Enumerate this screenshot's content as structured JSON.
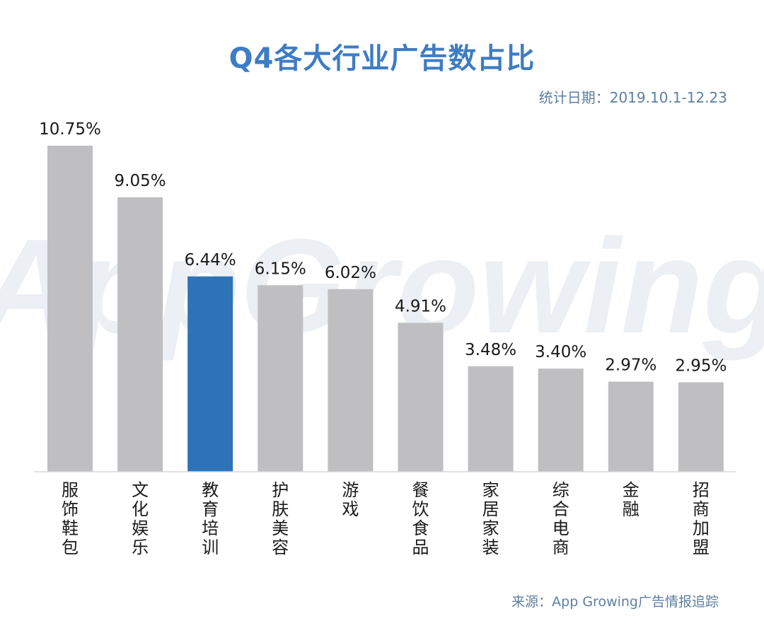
{
  "header": {
    "title": "Q4各大行业广告数占比",
    "date_label": "统计日期：2019.10.1-12.23"
  },
  "footer": {
    "source": "来源：App Growing广告情报追踪"
  },
  "watermark": {
    "text": "AppGrowing"
  },
  "colors": {
    "bar_default": "#bfbfc1",
    "bar_highlight": "#2e73b8",
    "title": "#3e7cc4",
    "axis": "#d9d9d9"
  },
  "chart_data": {
    "type": "bar",
    "title": "Q4各大行业广告数占比",
    "categories": [
      "服饰鞋包",
      "文化娱乐",
      "教育培训",
      "护肤美容",
      "游戏",
      "餐饮食品",
      "家居家装",
      "综合电商",
      "金融",
      "招商加盟"
    ],
    "values": [
      10.75,
      9.05,
      6.44,
      6.15,
      6.02,
      4.91,
      3.48,
      3.4,
      2.97,
      2.95
    ],
    "value_labels": [
      "10.75%",
      "9.05%",
      "6.44%",
      "6.15%",
      "6.02%",
      "4.91%",
      "3.48%",
      "3.40%",
      "2.97%",
      "2.95%"
    ],
    "highlight_index": 2,
    "unit": "%",
    "ylim": [
      0,
      10.75
    ],
    "grid": false,
    "legend": "none"
  }
}
